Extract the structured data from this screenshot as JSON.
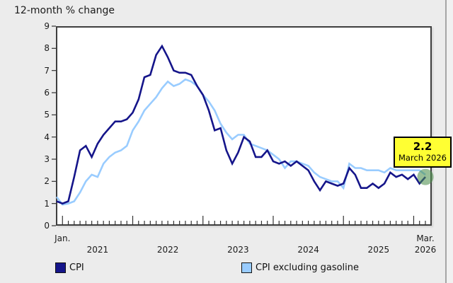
{
  "page": {
    "title": "12-month % change"
  },
  "tooltip": {
    "value": "2.2",
    "label": "March 2026"
  },
  "legend": {
    "items": [
      {
        "label": "CPI",
        "color": "#15158a"
      },
      {
        "label": "CPI excluding gasoline",
        "color": "#99ccff"
      }
    ]
  },
  "axis": {
    "x_first_label": "Jan.",
    "x_last_label": "Mar.",
    "years": [
      "2021",
      "2022",
      "2023",
      "2024",
      "2025",
      "2026"
    ],
    "yticks": [
      0,
      1,
      2,
      3,
      4,
      5,
      6,
      7,
      8,
      9
    ]
  },
  "colors": {
    "highlight_dot": "#4e8f4e",
    "tooltip_bg": "#ffff33",
    "plot_border": "#3e3e3e"
  },
  "chart_data": {
    "type": "line",
    "title": "12-month % change",
    "x_start": "Dec 2020",
    "x_end": "Mar 2026",
    "x_interval": "monthly",
    "n_points": 64,
    "ylim": [
      0,
      9
    ],
    "grid": false,
    "legend_position": "bottom",
    "highlight": {
      "series": "CPI",
      "x": "March 2026",
      "value": 2.2
    },
    "series": [
      {
        "name": "CPI",
        "color": "#15158a",
        "values": [
          1.1,
          1.0,
          1.1,
          2.2,
          3.4,
          3.6,
          3.1,
          3.7,
          4.1,
          4.4,
          4.7,
          4.7,
          4.8,
          5.1,
          5.7,
          6.7,
          6.8,
          7.7,
          8.1,
          7.6,
          7.0,
          6.9,
          6.9,
          6.8,
          6.3,
          5.9,
          5.2,
          4.3,
          4.4,
          3.4,
          2.8,
          3.3,
          4.0,
          3.8,
          3.1,
          3.1,
          3.4,
          2.9,
          2.8,
          2.9,
          2.7,
          2.9,
          2.7,
          2.5,
          2.0,
          1.6,
          2.0,
          1.9,
          1.8,
          1.9,
          2.6,
          2.3,
          1.7,
          1.7,
          1.9,
          1.7,
          1.9,
          2.4,
          2.2,
          2.3,
          2.1,
          2.3,
          1.9,
          2.2
        ]
      },
      {
        "name": "CPI excluding gasoline",
        "color": "#99ccff",
        "values": [
          1.3,
          0.95,
          1.0,
          1.1,
          1.5,
          2.0,
          2.3,
          2.2,
          2.8,
          3.1,
          3.3,
          3.4,
          3.6,
          4.3,
          4.7,
          5.2,
          5.5,
          5.8,
          6.2,
          6.5,
          6.3,
          6.4,
          6.6,
          6.5,
          6.3,
          5.9,
          5.6,
          5.2,
          4.6,
          4.2,
          3.9,
          4.1,
          4.1,
          3.7,
          3.6,
          3.5,
          3.4,
          3.2,
          3.0,
          2.6,
          2.9,
          2.9,
          2.8,
          2.7,
          2.4,
          2.2,
          2.1,
          2.0,
          2.0,
          1.7,
          2.8,
          2.6,
          2.6,
          2.5,
          2.5,
          2.5,
          2.4,
          2.6,
          2.5,
          2.5,
          2.5,
          2.5,
          2.5,
          2.3
        ]
      }
    ]
  }
}
